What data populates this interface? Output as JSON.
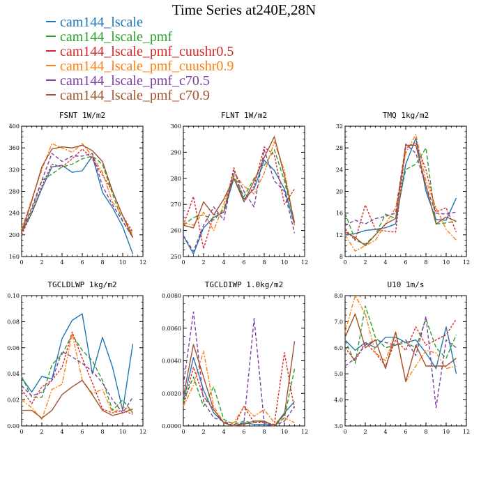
{
  "title": "Time Series at240E,28N",
  "legend": [
    {
      "label": "cam144_lscale",
      "color": "#1f77b4"
    },
    {
      "label": "cam144_lscale_pmf",
      "color": "#2ca02c"
    },
    {
      "label": "cam144_lscale_pmf_cuushr0.5",
      "color": "#d62728"
    },
    {
      "label": "cam144_lscale_pmf_cuushr0.9",
      "color": "#ff7f0e"
    },
    {
      "label": "cam144_lscale_pmf_c70.5",
      "color": "#7b3f9e"
    },
    {
      "label": "cam144_lscale_pmf_c70.9",
      "color": "#a0522d"
    }
  ],
  "chart_data": [
    {
      "type": "line",
      "title": "FSNT  1W/m2",
      "xlim": [
        0,
        12
      ],
      "xticks": [
        0,
        2,
        4,
        6,
        8,
        10,
        12
      ],
      "ylim": [
        160,
        400
      ],
      "yticks": [
        160,
        200,
        240,
        280,
        320,
        360,
        400
      ],
      "ytick_labels": [
        "160",
        "200",
        "240",
        "280",
        "320",
        "360",
        "400"
      ],
      "x": [
        0,
        1,
        2,
        3,
        4,
        5,
        6,
        7,
        8,
        9,
        10,
        11
      ],
      "series": [
        {
          "name": "cam144_lscale",
          "values": [
            205,
            240,
            285,
            325,
            328,
            315,
            318,
            345,
            278,
            250,
            215,
            165
          ]
        },
        {
          "name": "cam144_lscale_pmf",
          "values": [
            205,
            245,
            300,
            312,
            325,
            330,
            340,
            345,
            330,
            275,
            225,
            195
          ]
        },
        {
          "name": "cam144_lscale_pmf_cuushr0.5",
          "values": [
            200,
            240,
            290,
            330,
            325,
            340,
            358,
            340,
            310,
            280,
            235,
            205
          ]
        },
        {
          "name": "cam144_lscale_pmf_cuushr0.9",
          "values": [
            210,
            265,
            320,
            368,
            360,
            352,
            368,
            345,
            315,
            260,
            235,
            200
          ]
        },
        {
          "name": "cam144_lscale_pmf_c70.5",
          "values": [
            205,
            250,
            300,
            350,
            335,
            345,
            345,
            350,
            290,
            255,
            225,
            195
          ]
        },
        {
          "name": "cam144_lscale_pmf_c70.9",
          "values": [
            205,
            262,
            325,
            358,
            362,
            360,
            365,
            355,
            335,
            280,
            235,
            195
          ]
        }
      ]
    },
    {
      "type": "line",
      "title": "FLNT  1W/m2",
      "xlim": [
        0,
        12
      ],
      "xticks": [
        0,
        2,
        4,
        6,
        8,
        10,
        12
      ],
      "ylim": [
        250,
        300
      ],
      "yticks": [
        250,
        260,
        270,
        280,
        290,
        300
      ],
      "ytick_labels": [
        "250",
        "260",
        "270",
        "280",
        "290",
        "300"
      ],
      "x": [
        0,
        1,
        2,
        3,
        4,
        5,
        6,
        7,
        8,
        9,
        10,
        11
      ],
      "series": [
        {
          "name": "cam144_lscale",
          "values": [
            258,
            251,
            261,
            265,
            267,
            280,
            272,
            276,
            287,
            283,
            276,
            262
          ]
        },
        {
          "name": "cam144_lscale_pmf",
          "values": [
            262,
            265,
            266,
            264,
            268,
            281,
            273,
            280,
            285,
            291,
            279,
            263
          ]
        },
        {
          "name": "cam144_lscale_pmf_cuushr0.5",
          "values": [
            262,
            273,
            253,
            266,
            267,
            284,
            271,
            277,
            292,
            289,
            270,
            276
          ]
        },
        {
          "name": "cam144_lscale_pmf_cuushr0.9",
          "values": [
            263,
            262,
            267,
            260,
            270,
            282,
            277,
            274,
            282,
            294,
            283,
            262
          ]
        },
        {
          "name": "cam144_lscale_pmf_c70.5",
          "values": [
            258,
            252,
            262,
            269,
            264,
            283,
            275,
            269,
            291,
            279,
            275,
            259
          ]
        },
        {
          "name": "cam144_lscale_pmf_c70.9",
          "values": [
            262,
            261,
            271,
            266,
            272,
            280,
            271,
            279,
            288,
            296,
            281,
            263
          ]
        }
      ]
    },
    {
      "type": "line",
      "title": "TMQ  1kg/m2",
      "xlim": [
        0,
        12
      ],
      "xticks": [
        0,
        2,
        4,
        6,
        8,
        10,
        12
      ],
      "ylim": [
        8,
        32
      ],
      "yticks": [
        8,
        12,
        16,
        20,
        24,
        28,
        32
      ],
      "ytick_labels": [
        "8",
        "12",
        "16",
        "20",
        "24",
        "28",
        "32"
      ],
      "x": [
        0,
        1,
        2,
        3,
        4,
        5,
        6,
        7,
        8,
        9,
        10,
        11
      ],
      "series": [
        {
          "name": "cam144_lscale",
          "values": [
            12,
            12.2,
            12.8,
            13,
            13.3,
            14,
            25,
            29.8,
            20,
            14.8,
            14.7,
            18.8
          ]
        },
        {
          "name": "cam144_lscale_pmf",
          "values": [
            16,
            11,
            10.3,
            12,
            15.8,
            15,
            24,
            25,
            28,
            14,
            14.2,
            14.5
          ]
        },
        {
          "name": "cam144_lscale_pmf_cuushr0.5",
          "values": [
            13,
            11,
            17.5,
            13,
            12.7,
            12.5,
            28,
            29,
            24,
            16.2,
            17,
            12.5
          ]
        },
        {
          "name": "cam144_lscale_pmf_cuushr0.9",
          "values": [
            12,
            9,
            10,
            11,
            14,
            17,
            27,
            30.5,
            22,
            17,
            13,
            11
          ]
        },
        {
          "name": "cam144_lscale_pmf_c70.5",
          "values": [
            13.7,
            14.7,
            14,
            15,
            15.4,
            16,
            28.7,
            27,
            21,
            16,
            15.8,
            16.2
          ]
        },
        {
          "name": "cam144_lscale_pmf_c70.9",
          "values": [
            12.5,
            11.5,
            10,
            12,
            14,
            15,
            28.5,
            28.5,
            21,
            14,
            15.3,
            14.5
          ]
        }
      ]
    },
    {
      "type": "line",
      "title": "TGCLDLWP  1kg/m2",
      "xlim": [
        0,
        12
      ],
      "xticks": [
        0,
        2,
        4,
        6,
        8,
        10,
        12
      ],
      "ylim": [
        0,
        0.1
      ],
      "yticks": [
        0,
        0.02,
        0.04,
        0.06,
        0.08,
        0.1
      ],
      "ytick_labels": [
        "0.00",
        "0.02",
        "0.04",
        "0.06",
        "0.08",
        "0.10"
      ],
      "x": [
        0,
        1,
        2,
        3,
        4,
        5,
        6,
        7,
        8,
        9,
        10,
        11
      ],
      "series": [
        {
          "name": "cam144_lscale",
          "values": [
            0.037,
            0.026,
            0.038,
            0.036,
            0.067,
            0.081,
            0.086,
            0.04,
            0.068,
            0.045,
            0.012,
            0.063
          ]
        },
        {
          "name": "cam144_lscale_pmf",
          "values": [
            0.038,
            0.022,
            0.022,
            0.047,
            0.055,
            0.07,
            0.058,
            0.05,
            0.035,
            0.012,
            0.02,
            0.01
          ]
        },
        {
          "name": "cam144_lscale_pmf_cuushr0.5",
          "values": [
            0.028,
            0.017,
            0.03,
            0.035,
            0.045,
            0.072,
            0.052,
            0.033,
            0.013,
            0.01,
            0.012,
            0.009
          ]
        },
        {
          "name": "cam144_lscale_pmf_cuushr0.9",
          "values": [
            0.02,
            0.014,
            0.005,
            0.028,
            0.032,
            0.071,
            0.035,
            0.025,
            0.028,
            0.01,
            0.015,
            0.011
          ]
        },
        {
          "name": "cam144_lscale_pmf_c70.5",
          "values": [
            0.031,
            0.023,
            0.026,
            0.035,
            0.057,
            0.053,
            0.048,
            0.042,
            0.033,
            0.02,
            0.01,
            0.022
          ]
        },
        {
          "name": "cam144_lscale_pmf_c70.9",
          "values": [
            0.012,
            0.012,
            0.006,
            0.012,
            0.024,
            0.03,
            0.035,
            0.024,
            0.012,
            0.008,
            0.01,
            0.013
          ]
        }
      ]
    },
    {
      "type": "line",
      "title": "TGCLDIWP  1.0kg/m2",
      "xlim": [
        0,
        12
      ],
      "xticks": [
        0,
        2,
        4,
        6,
        8,
        10,
        12
      ],
      "ylim": [
        0,
        0.008
      ],
      "yticks": [
        0,
        0.002,
        0.004,
        0.006,
        0.008
      ],
      "ytick_labels": [
        "0.0000",
        "0.0020",
        "0.0040",
        "0.0060",
        "0.0080"
      ],
      "x": [
        0,
        1,
        2,
        3,
        4,
        5,
        6,
        7,
        8,
        9,
        10,
        11
      ],
      "series": [
        {
          "name": "cam144_lscale",
          "values": [
            0.0015,
            0.0042,
            0.0022,
            0.0008,
            0.0002,
            0.0,
            0.0002,
            0.0001,
            0.0001,
            0.0,
            0.0008,
            0.0015
          ]
        },
        {
          "name": "cam144_lscale_pmf",
          "values": [
            0.0015,
            0.003,
            0.0012,
            0.0024,
            0.0004,
            0.0001,
            0.0003,
            0.0002,
            0.0003,
            0.0,
            0.0005,
            0.0035
          ]
        },
        {
          "name": "cam144_lscale_pmf_cuushr0.5",
          "values": [
            0.0012,
            0.0036,
            0.0018,
            0.001,
            0.0002,
            0.0,
            0.0012,
            0.0002,
            0.0002,
            0.0001,
            0.0045,
            0.001
          ]
        },
        {
          "name": "cam144_lscale_pmf_cuushr0.9",
          "values": [
            0.0012,
            0.0025,
            0.0046,
            0.0012,
            0.0002,
            0.0002,
            0.0012,
            0.0006,
            0.001,
            0.0002,
            0.0005,
            0.0002
          ]
        },
        {
          "name": "cam144_lscale_pmf_c70.5",
          "values": [
            0.0025,
            0.007,
            0.0015,
            0.0005,
            0.0003,
            0.0,
            0.0002,
            0.0066,
            0.0002,
            0.0,
            0.0003,
            0.0012
          ]
        },
        {
          "name": "cam144_lscale_pmf_c70.9",
          "values": [
            0.0018,
            0.005,
            0.003,
            0.001,
            0.0002,
            0.0,
            0.0001,
            0.0003,
            0.0003,
            0.0,
            0.0007,
            0.0052
          ]
        }
      ]
    },
    {
      "type": "line",
      "title": "U10  1m/s",
      "xlim": [
        0,
        12
      ],
      "xticks": [
        0,
        2,
        4,
        6,
        8,
        10,
        12
      ],
      "ylim": [
        3,
        8
      ],
      "yticks": [
        3,
        4,
        5,
        6,
        7,
        8
      ],
      "ytick_labels": [
        "3.0",
        "4.0",
        "5.0",
        "6.0",
        "7.0",
        "8.0"
      ],
      "x": [
        0,
        1,
        2,
        3,
        4,
        5,
        6,
        7,
        8,
        9,
        10,
        11
      ],
      "series": [
        {
          "name": "cam144_lscale",
          "values": [
            6.3,
            5.9,
            6.2,
            6.0,
            6.4,
            6.4,
            6.2,
            6.3,
            5.8,
            5.2,
            6.8,
            5.0
          ]
        },
        {
          "name": "cam144_lscale_pmf",
          "values": [
            6.3,
            5.4,
            7.6,
            6.4,
            6.0,
            6.1,
            6.2,
            6.0,
            7.1,
            6.0,
            5.6,
            6.5
          ]
        },
        {
          "name": "cam144_lscale_pmf_cuushr0.5",
          "values": [
            6.0,
            5.5,
            6.2,
            5.8,
            5.3,
            6.3,
            5.9,
            6.8,
            6.1,
            6.3,
            6.5,
            7.1
          ]
        },
        {
          "name": "cam144_lscale_pmf_cuushr0.9",
          "values": [
            6.6,
            8.0,
            7.3,
            5.8,
            5.5,
            6.6,
            4.7,
            5.3,
            5.9,
            5.8,
            5.2,
            5.3
          ]
        },
        {
          "name": "cam144_lscale_pmf_c70.5",
          "values": [
            5.3,
            5.6,
            6.1,
            6.3,
            6.2,
            6.1,
            6.3,
            5.7,
            7.2,
            3.7,
            6.3,
            6.0
          ]
        },
        {
          "name": "cam144_lscale_pmf_c70.9",
          "values": [
            6.4,
            7.3,
            6.0,
            6.3,
            5.2,
            6.6,
            4.7,
            6.1,
            5.3,
            5.3,
            5.3,
            5.6
          ]
        }
      ]
    }
  ]
}
